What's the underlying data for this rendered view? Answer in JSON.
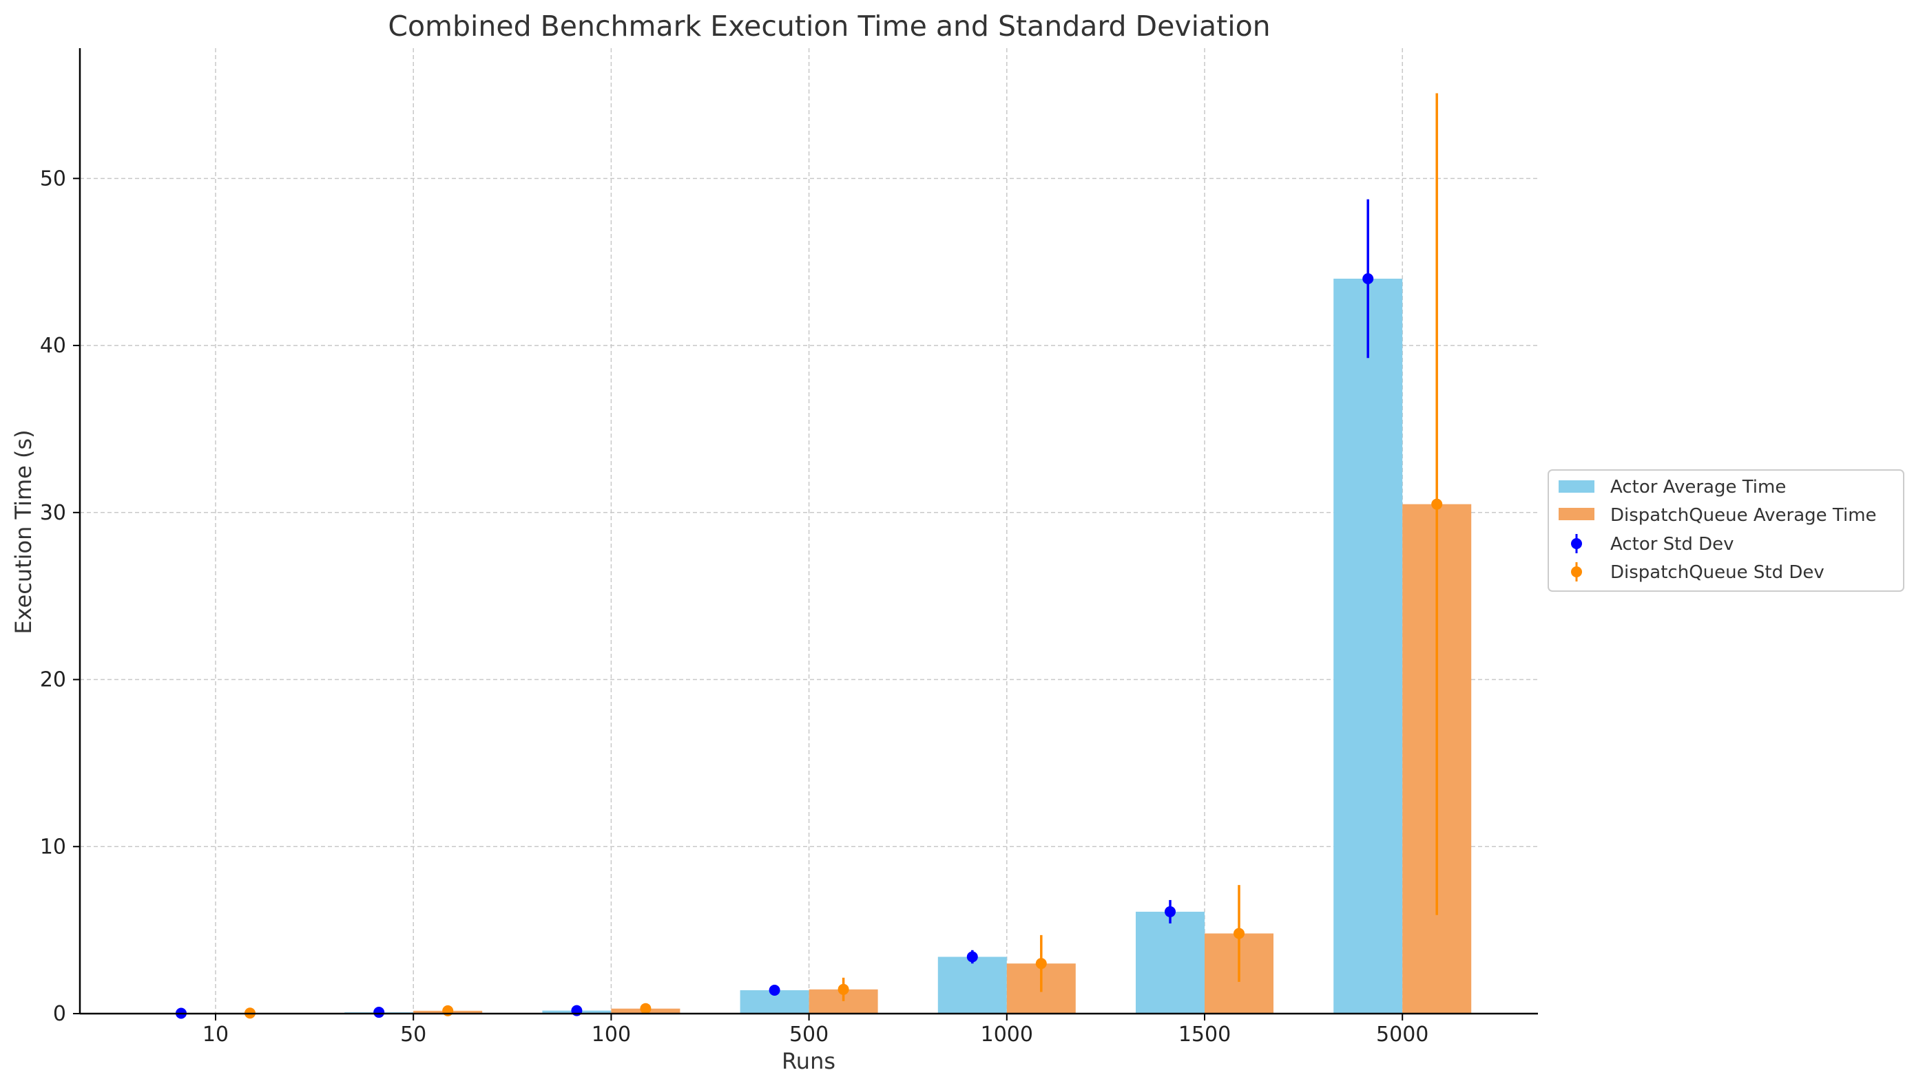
{
  "chart_data": {
    "type": "bar",
    "title": "Combined Benchmark Execution Time and Standard Deviation",
    "xlabel": "Runs",
    "ylabel": "Execution Time (s)",
    "categories": [
      "10",
      "50",
      "100",
      "500",
      "1000",
      "1500",
      "5000"
    ],
    "ylim": [
      0,
      57.8
    ],
    "yticks": [
      0,
      10,
      20,
      30,
      40,
      50
    ],
    "grid": true,
    "legend_position": "center-right",
    "series": [
      {
        "name": "Actor Average Time",
        "kind": "bar",
        "color": "#87CEEB",
        "values": [
          0.02,
          0.08,
          0.18,
          1.4,
          3.4,
          6.1,
          44.0
        ]
      },
      {
        "name": "DispatchQueue Average Time",
        "kind": "bar",
        "color": "#F4A460",
        "values": [
          0.03,
          0.17,
          0.3,
          1.45,
          3.0,
          4.8,
          30.5
        ]
      },
      {
        "name": "Actor Std Dev",
        "kind": "errorbar",
        "color": "#0000FF",
        "center": [
          0.02,
          0.08,
          0.18,
          1.4,
          3.4,
          6.1,
          44.0
        ],
        "std": [
          0.01,
          0.03,
          0.05,
          0.15,
          0.4,
          0.7,
          4.75
        ]
      },
      {
        "name": "DispatchQueue Std Dev",
        "kind": "errorbar",
        "color": "#FF8C00",
        "center": [
          0.03,
          0.17,
          0.3,
          1.45,
          3.0,
          4.8,
          30.5
        ],
        "std": [
          0.02,
          0.08,
          0.15,
          0.7,
          1.7,
          2.9,
          24.6
        ]
      }
    ]
  }
}
